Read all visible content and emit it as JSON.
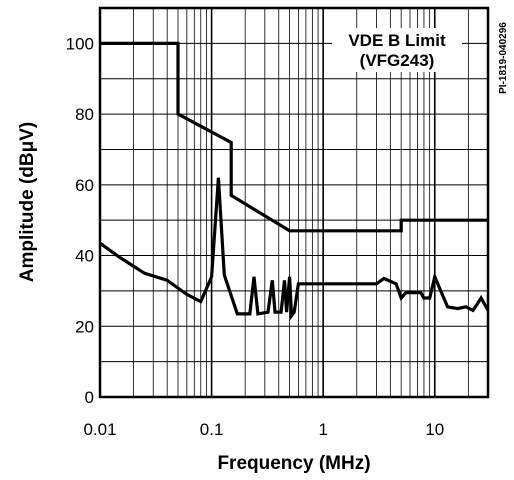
{
  "chart_data": {
    "type": "line",
    "xlabel": "Frequency (MHz)",
    "ylabel": "Amplitude (dBμV)",
    "x_scale": "log",
    "xlim": [
      0.01,
      30
    ],
    "ylim": [
      0,
      110
    ],
    "x_ticks": [
      0.01,
      0.1,
      1,
      10
    ],
    "x_tick_labels": [
      "0.01",
      "0.1",
      "1",
      "10"
    ],
    "y_ticks": [
      0,
      20,
      40,
      60,
      80,
      100
    ],
    "y_tick_labels": [
      "0",
      "20",
      "40",
      "60",
      "80",
      "100"
    ],
    "grid": true,
    "annotation": {
      "line1": "VDE B Limit",
      "line2": "(VFG243)"
    },
    "figure_id": "PI-1819-040296",
    "series": [
      {
        "role": "limit",
        "points": [
          [
            0.01,
            100
          ],
          [
            0.05,
            100
          ],
          [
            0.05,
            80
          ],
          [
            0.15,
            72
          ],
          [
            0.15,
            57
          ],
          [
            0.5,
            47
          ],
          [
            5,
            47
          ],
          [
            5,
            50
          ],
          [
            30,
            50
          ]
        ]
      },
      {
        "role": "measured",
        "points": [
          [
            0.01,
            43.5
          ],
          [
            0.015,
            39.5
          ],
          [
            0.025,
            35
          ],
          [
            0.04,
            33
          ],
          [
            0.06,
            29
          ],
          [
            0.08,
            27
          ],
          [
            0.1,
            34
          ],
          [
            0.115,
            62
          ],
          [
            0.13,
            34.5
          ],
          [
            0.17,
            23.5
          ],
          [
            0.22,
            23.5
          ],
          [
            0.24,
            34
          ],
          [
            0.26,
            23.5
          ],
          [
            0.32,
            24
          ],
          [
            0.35,
            33
          ],
          [
            0.37,
            24
          ],
          [
            0.42,
            24
          ],
          [
            0.45,
            33
          ],
          [
            0.47,
            24
          ],
          [
            0.5,
            34
          ],
          [
            0.52,
            23
          ],
          [
            0.55,
            24
          ],
          [
            0.6,
            32
          ],
          [
            1,
            32
          ],
          [
            3,
            32
          ],
          [
            3.5,
            33.5
          ],
          [
            4.5,
            32
          ],
          [
            5,
            28
          ],
          [
            5.5,
            29.5
          ],
          [
            7.5,
            29.5
          ],
          [
            8,
            28
          ],
          [
            9,
            28
          ],
          [
            10,
            34
          ],
          [
            13,
            25.5
          ],
          [
            16,
            25
          ],
          [
            19,
            25.5
          ],
          [
            22,
            24.5
          ],
          [
            26,
            28
          ],
          [
            30,
            24.5
          ]
        ]
      }
    ]
  }
}
